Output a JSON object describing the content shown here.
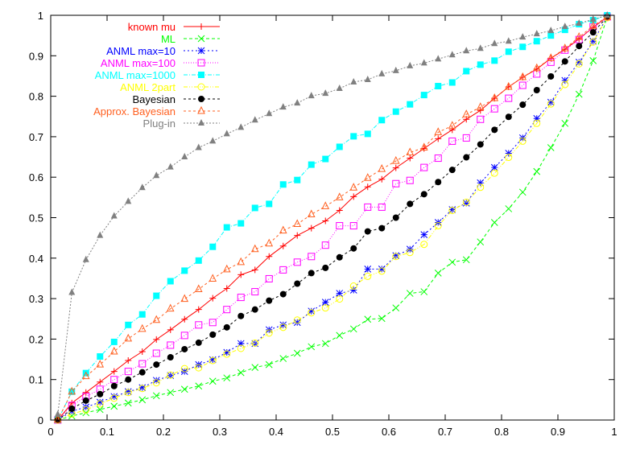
{
  "chart_data": {
    "type": "line",
    "title": "",
    "xlabel": "",
    "ylabel": "",
    "xlim": [
      0,
      1
    ],
    "ylim": [
      0,
      1
    ],
    "grid": false,
    "legend_position": "top-left",
    "x_ticks": [
      "0",
      "0.1",
      "0.2",
      "0.3",
      "0.4",
      "0.5",
      "0.6",
      "0.7",
      "0.8",
      "0.9",
      "1"
    ],
    "y_ticks": [
      "0",
      "0.1",
      "0.2",
      "0.3",
      "0.4",
      "0.5",
      "0.6",
      "0.7",
      "0.8",
      "0.9",
      "1"
    ],
    "x": [
      0.0125,
      0.0375,
      0.0625,
      0.0875,
      0.1125,
      0.1375,
      0.1625,
      0.1875,
      0.2125,
      0.2375,
      0.2625,
      0.2875,
      0.3125,
      0.3375,
      0.3625,
      0.3875,
      0.4125,
      0.4375,
      0.4625,
      0.4875,
      0.5125,
      0.5375,
      0.5625,
      0.5875,
      0.6125,
      0.6375,
      0.6625,
      0.6875,
      0.7125,
      0.7375,
      0.7625,
      0.7875,
      0.8125,
      0.8375,
      0.8625,
      0.8875,
      0.9125,
      0.9375,
      0.9625,
      0.9875
    ],
    "series": [
      {
        "name": "known mu",
        "color": "#ff0000",
        "marker": "plus",
        "dash": "",
        "values": [
          0,
          0.042,
          0.068,
          0.094,
          0.12,
          0.147,
          0.169,
          0.199,
          0.223,
          0.249,
          0.273,
          0.301,
          0.325,
          0.359,
          0.371,
          0.404,
          0.43,
          0.456,
          0.474,
          0.492,
          0.518,
          0.552,
          0.576,
          0.595,
          0.623,
          0.647,
          0.671,
          0.695,
          0.717,
          0.743,
          0.765,
          0.795,
          0.823,
          0.847,
          0.867,
          0.894,
          0.916,
          0.942,
          0.97,
          0.996
        ]
      },
      {
        "name": "ML",
        "color": "#00ff00",
        "marker": "cross",
        "dash": "4,3",
        "values": [
          0,
          0.01,
          0.018,
          0.026,
          0.034,
          0.042,
          0.05,
          0.06,
          0.068,
          0.076,
          0.084,
          0.096,
          0.104,
          0.117,
          0.13,
          0.137,
          0.152,
          0.165,
          0.181,
          0.189,
          0.209,
          0.225,
          0.249,
          0.251,
          0.277,
          0.313,
          0.317,
          0.363,
          0.39,
          0.396,
          0.44,
          0.488,
          0.522,
          0.563,
          0.614,
          0.673,
          0.733,
          0.805,
          0.888,
          0.996
        ]
      },
      {
        "name": "ANML max=10",
        "color": "#0000ff",
        "marker": "star",
        "dash": "2,3",
        "values": [
          0,
          0.022,
          0.032,
          0.044,
          0.058,
          0.07,
          0.08,
          0.098,
          0.11,
          0.12,
          0.137,
          0.149,
          0.167,
          0.189,
          0.189,
          0.223,
          0.235,
          0.241,
          0.269,
          0.291,
          0.313,
          0.321,
          0.373,
          0.373,
          0.406,
          0.422,
          0.458,
          0.488,
          0.52,
          0.536,
          0.586,
          0.624,
          0.659,
          0.697,
          0.745,
          0.785,
          0.839,
          0.884,
          0.936,
          0.996
        ]
      },
      {
        "name": "ANML max=100",
        "color": "#ff00ff",
        "marker": "box",
        "dash": "1,2",
        "values": [
          0,
          0.036,
          0.058,
          0.076,
          0.1,
          0.12,
          0.139,
          0.165,
          0.185,
          0.209,
          0.235,
          0.241,
          0.273,
          0.303,
          0.317,
          0.349,
          0.371,
          0.39,
          0.404,
          0.432,
          0.48,
          0.48,
          0.526,
          0.526,
          0.584,
          0.592,
          0.624,
          0.647,
          0.689,
          0.697,
          0.743,
          0.769,
          0.795,
          0.827,
          0.855,
          0.884,
          0.914,
          0.94,
          0.972,
          0.996
        ]
      },
      {
        "name": "ANML max=1000",
        "color": "#00ffff",
        "marker": "filled-box",
        "dash": "5,2,1,2",
        "values": [
          0,
          0.07,
          0.116,
          0.157,
          0.193,
          0.235,
          0.261,
          0.307,
          0.343,
          0.369,
          0.394,
          0.428,
          0.476,
          0.486,
          0.524,
          0.534,
          0.582,
          0.593,
          0.631,
          0.645,
          0.675,
          0.701,
          0.707,
          0.741,
          0.762,
          0.78,
          0.803,
          0.825,
          0.834,
          0.862,
          0.878,
          0.888,
          0.91,
          0.922,
          0.936,
          0.95,
          0.964,
          0.978,
          0.988,
          1.0
        ]
      },
      {
        "name": "ANML 2part",
        "color": "#ffff00",
        "marker": "circle",
        "dash": "5,2,1,2,1,2",
        "values": [
          0,
          0.015,
          0.025,
          0.04,
          0.054,
          0.068,
          0.078,
          0.092,
          0.111,
          0.127,
          0.129,
          0.147,
          0.163,
          0.177,
          0.19,
          0.215,
          0.229,
          0.247,
          0.265,
          0.277,
          0.299,
          0.331,
          0.355,
          0.368,
          0.404,
          0.414,
          0.434,
          0.48,
          0.518,
          0.538,
          0.575,
          0.61,
          0.649,
          0.689,
          0.733,
          0.781,
          0.829,
          0.88,
          0.934,
          0.994
        ]
      },
      {
        "name": "Bayesian",
        "color": "#000000",
        "marker": "filled-circle",
        "dash": "3,3",
        "values": [
          0,
          0.028,
          0.048,
          0.064,
          0.084,
          0.1,
          0.118,
          0.137,
          0.155,
          0.175,
          0.191,
          0.211,
          0.229,
          0.257,
          0.273,
          0.295,
          0.311,
          0.337,
          0.363,
          0.376,
          0.402,
          0.424,
          0.466,
          0.474,
          0.5,
          0.534,
          0.558,
          0.588,
          0.618,
          0.649,
          0.681,
          0.717,
          0.749,
          0.779,
          0.815,
          0.849,
          0.886,
          0.924,
          0.958,
          0.996
        ]
      },
      {
        "name": "Approx. Bayesian",
        "color": "#ff6020",
        "marker": "triangle",
        "dash": "3,3",
        "values": [
          0,
          0.07,
          0.108,
          0.137,
          0.169,
          0.201,
          0.225,
          0.247,
          0.275,
          0.299,
          0.323,
          0.349,
          0.372,
          0.39,
          0.422,
          0.436,
          0.468,
          0.484,
          0.508,
          0.528,
          0.55,
          0.574,
          0.598,
          0.62,
          0.64,
          0.661,
          0.673,
          0.711,
          0.727,
          0.755,
          0.773,
          0.795,
          0.823,
          0.847,
          0.869,
          0.894,
          0.918,
          0.946,
          0.974,
          0.996
        ]
      },
      {
        "name": "Plug-in",
        "color": "#808080",
        "marker": "filled-triangle",
        "dash": "2,2",
        "values": [
          0.014,
          0.315,
          0.396,
          0.456,
          0.504,
          0.54,
          0.574,
          0.604,
          0.625,
          0.65,
          0.673,
          0.689,
          0.707,
          0.723,
          0.741,
          0.757,
          0.773,
          0.783,
          0.801,
          0.807,
          0.819,
          0.835,
          0.841,
          0.855,
          0.863,
          0.875,
          0.882,
          0.892,
          0.902,
          0.912,
          0.918,
          0.93,
          0.936,
          0.946,
          0.954,
          0.962,
          0.972,
          0.98,
          0.99,
          1.0
        ]
      }
    ]
  }
}
